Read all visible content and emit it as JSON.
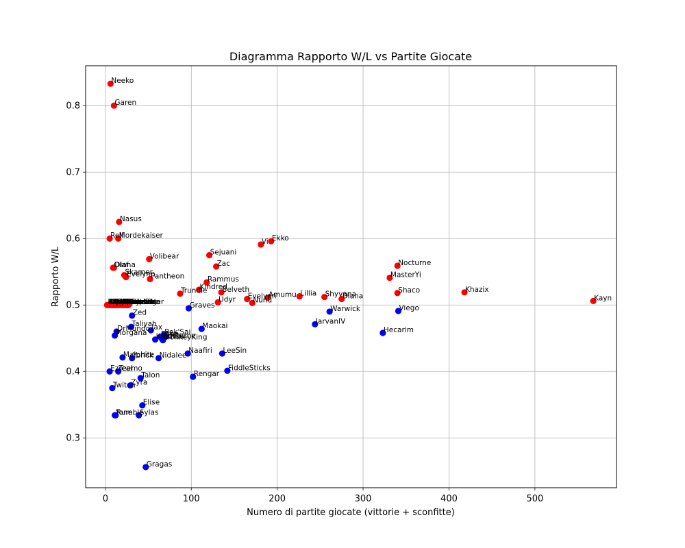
{
  "chart_data": {
    "type": "scatter",
    "title": "Diagramma Rapporto W/L vs Partite Giocate",
    "xlabel": "Numero di partite giocate (vittorie + sconfitte)",
    "ylabel": "Rapporto W/L",
    "xlim": [
      -23,
      595
    ],
    "ylim": [
      0.225,
      0.86
    ],
    "xticks": [
      0,
      100,
      200,
      300,
      400,
      500
    ],
    "yticks": [
      0.3,
      0.4,
      0.5,
      0.6,
      0.7,
      0.8
    ],
    "grid": true,
    "colors": {
      "above": "#ff0000",
      "below": "#0000ff"
    },
    "points": [
      {
        "name": "Neeko",
        "x": 6,
        "y": 0.833,
        "group": "above"
      },
      {
        "name": "Garen",
        "x": 10,
        "y": 0.8,
        "group": "above"
      },
      {
        "name": "Nasus",
        "x": 16,
        "y": 0.625,
        "group": "above"
      },
      {
        "name": "Rell",
        "x": 5,
        "y": 0.6,
        "group": "above"
      },
      {
        "name": "Mordekaiser",
        "x": 15,
        "y": 0.6,
        "group": "above"
      },
      {
        "name": "Vi",
        "x": 181,
        "y": 0.591,
        "group": "above"
      },
      {
        "name": "Ekko",
        "x": 193,
        "y": 0.596,
        "group": "above"
      },
      {
        "name": "Sejuani",
        "x": 121,
        "y": 0.575,
        "group": "above"
      },
      {
        "name": "Volibear",
        "x": 51,
        "y": 0.569,
        "group": "above"
      },
      {
        "name": "Zac",
        "x": 129,
        "y": 0.558,
        "group": "above"
      },
      {
        "name": "Olaf",
        "x": 9,
        "y": 0.556,
        "group": "above"
      },
      {
        "name": "Diana",
        "x": 10,
        "y": 0.556,
        "group": "above"
      },
      {
        "name": "Nocturne",
        "x": 340,
        "y": 0.559,
        "group": "above"
      },
      {
        "name": "Skarner",
        "x": 22,
        "y": 0.545,
        "group": "above"
      },
      {
        "name": "Evelynn",
        "x": 24,
        "y": 0.542,
        "group": "above"
      },
      {
        "name": "MasterYi",
        "x": 331,
        "y": 0.541,
        "group": "above"
      },
      {
        "name": "Pantheon",
        "x": 52,
        "y": 0.539,
        "group": "above"
      },
      {
        "name": "Rammus",
        "x": 118,
        "y": 0.534,
        "group": "above"
      },
      {
        "name": "Kindred",
        "x": 109,
        "y": 0.523,
        "group": "above"
      },
      {
        "name": "Belveth",
        "x": 135,
        "y": 0.519,
        "group": "above"
      },
      {
        "name": "Trundle",
        "x": 87,
        "y": 0.517,
        "group": "above"
      },
      {
        "name": "Shaco",
        "x": 340,
        "y": 0.518,
        "group": "above"
      },
      {
        "name": "Khazix",
        "x": 418,
        "y": 0.519,
        "group": "above"
      },
      {
        "name": "Lillia",
        "x": 226,
        "y": 0.513,
        "group": "above"
      },
      {
        "name": "Shyvana",
        "x": 255,
        "y": 0.512,
        "group": "above"
      },
      {
        "name": "Amumu",
        "x": 189,
        "y": 0.511,
        "group": "above"
      },
      {
        "name": "Evelynn",
        "x": 165,
        "y": 0.509,
        "group": "above"
      },
      {
        "name": "Diana",
        "x": 275,
        "y": 0.509,
        "group": "above"
      },
      {
        "name": "Kayn",
        "x": 568,
        "y": 0.506,
        "group": "above"
      },
      {
        "name": "Udyr",
        "x": 131,
        "y": 0.504,
        "group": "above"
      },
      {
        "name": "Nunu",
        "x": 171,
        "y": 0.503,
        "group": "above"
      },
      {
        "name": "Karthus",
        "x": 2,
        "y": 0.5,
        "group": "above"
      },
      {
        "name": "Kled",
        "x": 4,
        "y": 0.5,
        "group": "above"
      },
      {
        "name": "Urgot",
        "x": 6,
        "y": 0.5,
        "group": "above"
      },
      {
        "name": "Heimerdinger",
        "x": 10,
        "y": 0.5,
        "group": "above"
      },
      {
        "name": "Poppy",
        "x": 14,
        "y": 0.5,
        "group": "above"
      },
      {
        "name": "Sion",
        "x": 18,
        "y": 0.5,
        "group": "above"
      },
      {
        "name": "Gwen",
        "x": 22,
        "y": 0.5,
        "group": "above"
      },
      {
        "name": "Aurelion Sol",
        "x": 8,
        "y": 0.5,
        "group": "above"
      },
      {
        "name": "Jax",
        "x": 12,
        "y": 0.5,
        "group": "above"
      },
      {
        "name": "Kaisa",
        "x": 16,
        "y": 0.5,
        "group": "above"
      },
      {
        "name": "Darius",
        "x": 20,
        "y": 0.5,
        "group": "above"
      },
      {
        "name": "Malphite",
        "x": 24,
        "y": 0.5,
        "group": "above"
      },
      {
        "name": "Fiora",
        "x": 26,
        "y": 0.5,
        "group": "above"
      },
      {
        "name": "Ivern",
        "x": 3,
        "y": 0.5,
        "group": "above"
      },
      {
        "name": "Lux",
        "x": 5,
        "y": 0.5,
        "group": "above"
      },
      {
        "name": "Renekton",
        "x": 7,
        "y": 0.5,
        "group": "above"
      },
      {
        "name": "Sett",
        "x": 9,
        "y": 0.5,
        "group": "above"
      },
      {
        "name": "Leblanc",
        "x": 11,
        "y": 0.5,
        "group": "above"
      },
      {
        "name": "Yasuo",
        "x": 13,
        "y": 0.5,
        "group": "above"
      },
      {
        "name": "Ahri",
        "x": 15,
        "y": 0.5,
        "group": "above"
      },
      {
        "name": "Vex",
        "x": 17,
        "y": 0.5,
        "group": "above"
      },
      {
        "name": "Irelia",
        "x": 19,
        "y": 0.5,
        "group": "above"
      },
      {
        "name": "Xinzhao",
        "x": 21,
        "y": 0.5,
        "group": "above"
      },
      {
        "name": "Lissandra",
        "x": 23,
        "y": 0.5,
        "group": "above"
      },
      {
        "name": "Nidalee",
        "x": 25,
        "y": 0.5,
        "group": "above"
      },
      {
        "name": "Camille",
        "x": 27,
        "y": 0.5,
        "group": "above"
      },
      {
        "name": "Kalista",
        "x": 8,
        "y": 0.5,
        "group": "above"
      },
      {
        "name": "Viego",
        "x": 341,
        "y": 0.491,
        "group": "below"
      },
      {
        "name": "Warwick",
        "x": 261,
        "y": 0.49,
        "group": "below"
      },
      {
        "name": "Graves",
        "x": 97,
        "y": 0.495,
        "group": "below"
      },
      {
        "name": "Zed",
        "x": 31,
        "y": 0.484,
        "group": "below"
      },
      {
        "name": "JarvanIV",
        "x": 244,
        "y": 0.471,
        "group": "below"
      },
      {
        "name": "Taliyah",
        "x": 30,
        "y": 0.467,
        "group": "below"
      },
      {
        "name": "Maokai",
        "x": 112,
        "y": 0.464,
        "group": "below"
      },
      {
        "name": "Jax",
        "x": 53,
        "y": 0.462,
        "group": "below"
      },
      {
        "name": "DrMundo",
        "x": 13,
        "y": 0.46,
        "group": "below"
      },
      {
        "name": "Hecarim",
        "x": 323,
        "y": 0.458,
        "group": "below"
      },
      {
        "name": "Morgana",
        "x": 11,
        "y": 0.454,
        "group": "below"
      },
      {
        "name": "Rek'Sai",
        "x": 68,
        "y": 0.455,
        "group": "below"
      },
      {
        "name": "Elise",
        "x": 64,
        "y": 0.452,
        "group": "below"
      },
      {
        "name": "Lee",
        "x": 70,
        "y": 0.452,
        "group": "below"
      },
      {
        "name": "Nocturne",
        "x": 66,
        "y": 0.449,
        "group": "below"
      },
      {
        "name": "Karthus",
        "x": 58,
        "y": 0.448,
        "group": "below"
      },
      {
        "name": "MonkeyKing",
        "x": 67,
        "y": 0.447,
        "group": "below"
      },
      {
        "name": "Naafiri",
        "x": 96,
        "y": 0.427,
        "group": "below"
      },
      {
        "name": "LeeSin",
        "x": 136,
        "y": 0.427,
        "group": "below"
      },
      {
        "name": "Malphite",
        "x": 20,
        "y": 0.421,
        "group": "below"
      },
      {
        "name": "Yorick",
        "x": 31,
        "y": 0.42,
        "group": "below"
      },
      {
        "name": "Nidalee",
        "x": 62,
        "y": 0.42,
        "group": "below"
      },
      {
        "name": "FiddleSticks",
        "x": 142,
        "y": 0.401,
        "group": "below"
      },
      {
        "name": "Ezreal",
        "x": 5,
        "y": 0.4,
        "group": "below"
      },
      {
        "name": "Teemo",
        "x": 15,
        "y": 0.4,
        "group": "below"
      },
      {
        "name": "Rengar",
        "x": 102,
        "y": 0.392,
        "group": "below"
      },
      {
        "name": "Talon",
        "x": 41,
        "y": 0.39,
        "group": "below"
      },
      {
        "name": "Zyra",
        "x": 29,
        "y": 0.379,
        "group": "below"
      },
      {
        "name": "Twitch",
        "x": 8,
        "y": 0.375,
        "group": "below"
      },
      {
        "name": "Elise",
        "x": 43,
        "y": 0.349,
        "group": "below"
      },
      {
        "name": "Yone",
        "x": 11,
        "y": 0.334,
        "group": "below"
      },
      {
        "name": "Rumble",
        "x": 12,
        "y": 0.334,
        "group": "below"
      },
      {
        "name": "Sylas",
        "x": 39,
        "y": 0.334,
        "group": "below"
      },
      {
        "name": "Gragas",
        "x": 47,
        "y": 0.256,
        "group": "below"
      }
    ]
  }
}
